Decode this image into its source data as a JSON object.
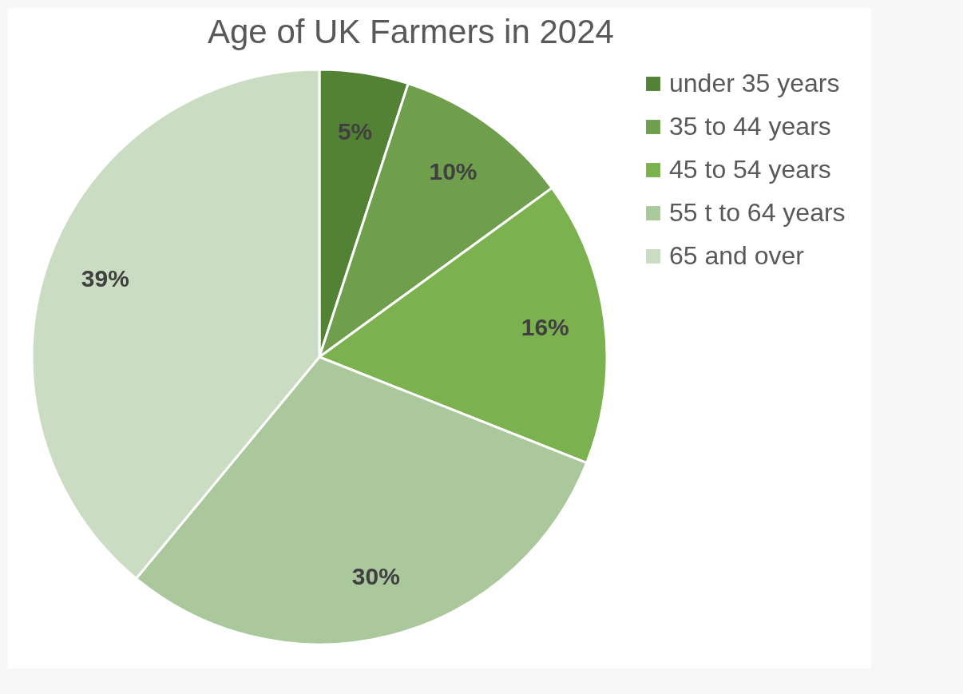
{
  "chart_data": {
    "type": "pie",
    "title": "Age of UK Farmers in 2024",
    "categories": [
      "under 35 years",
      "35 to 44 years",
      "45 to 54 years",
      "55 t to 64 years",
      "65 and over"
    ],
    "values": [
      5,
      10,
      16,
      30,
      39
    ],
    "value_labels": [
      "5%",
      "10%",
      "16%",
      "30%",
      "39%"
    ],
    "colors": [
      "#548235",
      "#6f9f4c",
      "#7cb150",
      "#aac89c",
      "#cadcc2"
    ],
    "legend": "right"
  }
}
